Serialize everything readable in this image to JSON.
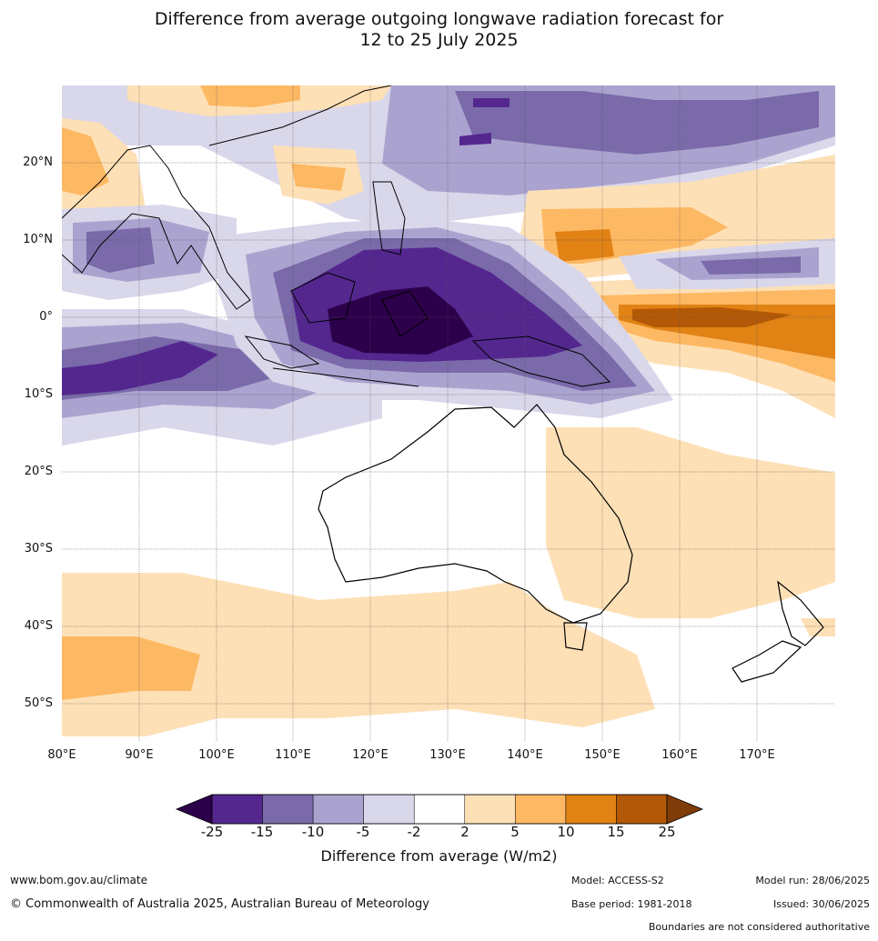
{
  "title_line1": "Difference from average outgoing longwave radiation forecast for",
  "title_line2": "12 to 25 July 2025",
  "lat_labels": [
    "20°N",
    "10°N",
    "0°",
    "10°S",
    "20°S",
    "30°S",
    "40°S",
    "50°S"
  ],
  "lon_labels": [
    "80°E",
    "90°E",
    "100°E",
    "110°E",
    "120°E",
    "130°E",
    "140°E",
    "150°E",
    "160°E",
    "170°E"
  ],
  "colorbar": {
    "ticks": [
      "-25",
      "-15",
      "-10",
      "-5",
      "-2",
      "2",
      "5",
      "10",
      "15",
      "25"
    ],
    "colors": [
      "#54278f",
      "#7a6aa9",
      "#aba3cf",
      "#d9d7ea",
      "#ffffff",
      "#fee0b6",
      "#fdb863",
      "#e08214",
      "#b35806"
    ],
    "low_extend_color": "#2d004b",
    "high_extend_color": "#7f3b08",
    "title": "Difference from average (W/m2)"
  },
  "footer": {
    "url": "www.bom.gov.au/climate",
    "copyright": "© Commonwealth of Australia 2025, Australian Bureau of Meteorology",
    "model": "Model: ACCESS-S2",
    "base_period": "Base period: 1981-2018",
    "model_run": "Model run: 28/06/2025",
    "issued": "Issued: 30/06/2025",
    "disclaimer": "Boundaries are not considered authoritative"
  }
}
